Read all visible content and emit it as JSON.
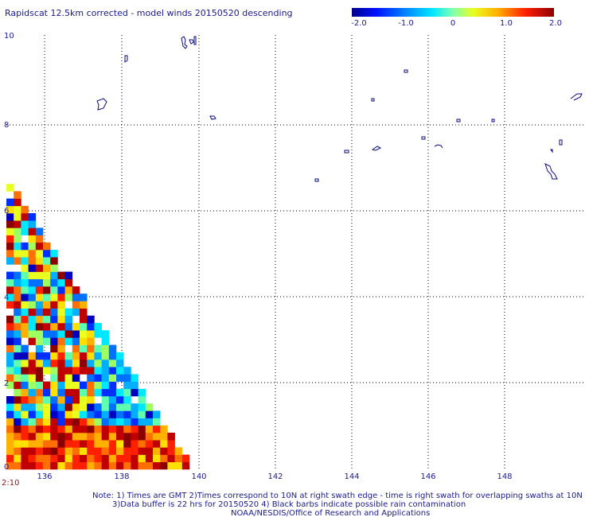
{
  "title": "Rapidscat 12.5km corrected - model winds 20150520 descending",
  "colorbar": {
    "ticks": [
      "-2.0",
      "-1.0",
      "0",
      "1.0",
      "2.0"
    ],
    "min": -2.0,
    "max": 2.0
  },
  "map": {
    "lon_labels": [
      "136",
      "138",
      "140",
      "142",
      "144",
      "146",
      "148"
    ],
    "lat_labels": [
      "0",
      "2",
      "4",
      "6",
      "8",
      "10"
    ],
    "lon_range": [
      135,
      149.6
    ],
    "lat_range": [
      0,
      10
    ]
  },
  "swath_time": "2:10",
  "notes": [
    "Note: 1) Times are GMT 2)Times correspond to 10N at right swath edge - time is right swath for overlapping swaths at 10N",
    "3)Data buffer is 22 hrs for 20150520 4) Black barbs indicate possible rain contamination",
    "NOAA/NESDIS/Office of Research and Applications"
  ]
}
